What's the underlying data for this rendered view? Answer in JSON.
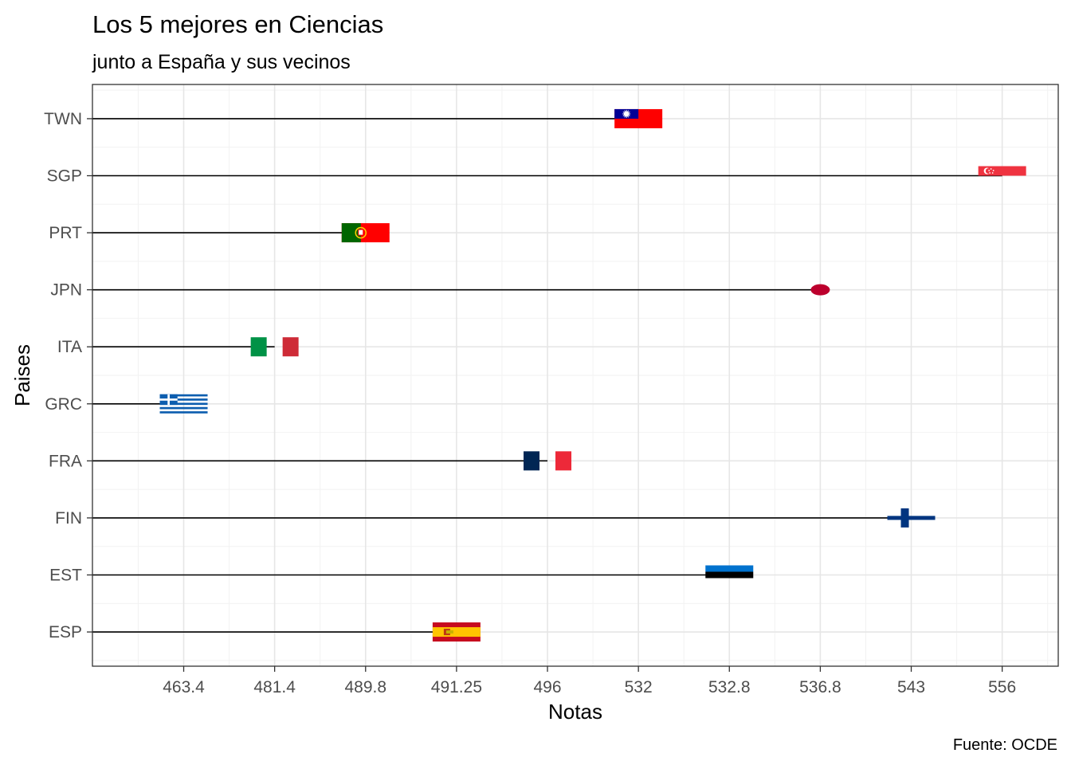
{
  "chart_data": {
    "type": "bar",
    "title": "Los 5 mejores en Ciencias",
    "subtitle": "junto a España y sus vecinos",
    "xlabel": "Notas",
    "ylabel": "Paises",
    "caption": "Fuente: OCDE",
    "x_tick_labels": [
      "463.4",
      "481.4",
      "489.8",
      "491.25",
      "496",
      "532",
      "532.8",
      "536.8",
      "543",
      "556"
    ],
    "x_scale": "categorical",
    "grid": true,
    "categories": [
      "TWN",
      "SGP",
      "PRT",
      "JPN",
      "ITA",
      "GRC",
      "FRA",
      "FIN",
      "EST",
      "ESP"
    ],
    "values": [
      532,
      556,
      489.8,
      536.8,
      481.4,
      463.4,
      496,
      543,
      532.8,
      491.25
    ],
    "marker": "flag"
  }
}
